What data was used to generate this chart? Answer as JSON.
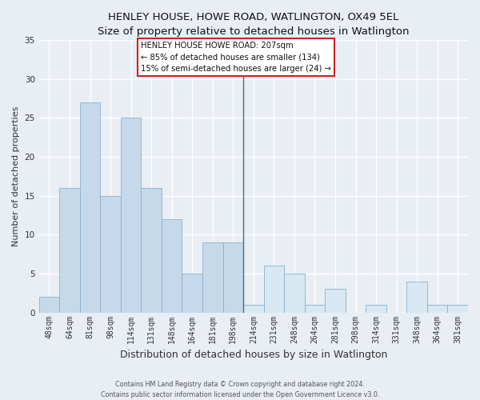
{
  "title": "HENLEY HOUSE, HOWE ROAD, WATLINGTON, OX49 5EL",
  "subtitle": "Size of property relative to detached houses in Watlington",
  "xlabel": "Distribution of detached houses by size in Watlington",
  "ylabel": "Number of detached properties",
  "bar_labels": [
    "48sqm",
    "64sqm",
    "81sqm",
    "98sqm",
    "114sqm",
    "131sqm",
    "148sqm",
    "164sqm",
    "181sqm",
    "198sqm",
    "214sqm",
    "231sqm",
    "248sqm",
    "264sqm",
    "281sqm",
    "298sqm",
    "314sqm",
    "331sqm",
    "348sqm",
    "364sqm",
    "381sqm"
  ],
  "bar_values": [
    2,
    16,
    27,
    15,
    25,
    16,
    12,
    5,
    9,
    9,
    1,
    6,
    5,
    1,
    3,
    0,
    1,
    0,
    4,
    1,
    1
  ],
  "bar_color_left": "#c5d9ea",
  "bar_color_right": "#d8e8f3",
  "bar_edge_color": "#8ab0cc",
  "divider_index": 10,
  "annotation_title": "HENLEY HOUSE HOWE ROAD: 207sqm",
  "annotation_line1": "← 85% of detached houses are smaller (134)",
  "annotation_line2": "15% of semi-detached houses are larger (24) →",
  "ylim": [
    0,
    35
  ],
  "yticks": [
    0,
    5,
    10,
    15,
    20,
    25,
    30,
    35
  ],
  "bg_color": "#e8eef4",
  "grid_color": "#ffffff",
  "footer1": "Contains HM Land Registry data © Crown copyright and database right 2024.",
  "footer2": "Contains public sector information licensed under the Open Government Licence v3.0."
}
